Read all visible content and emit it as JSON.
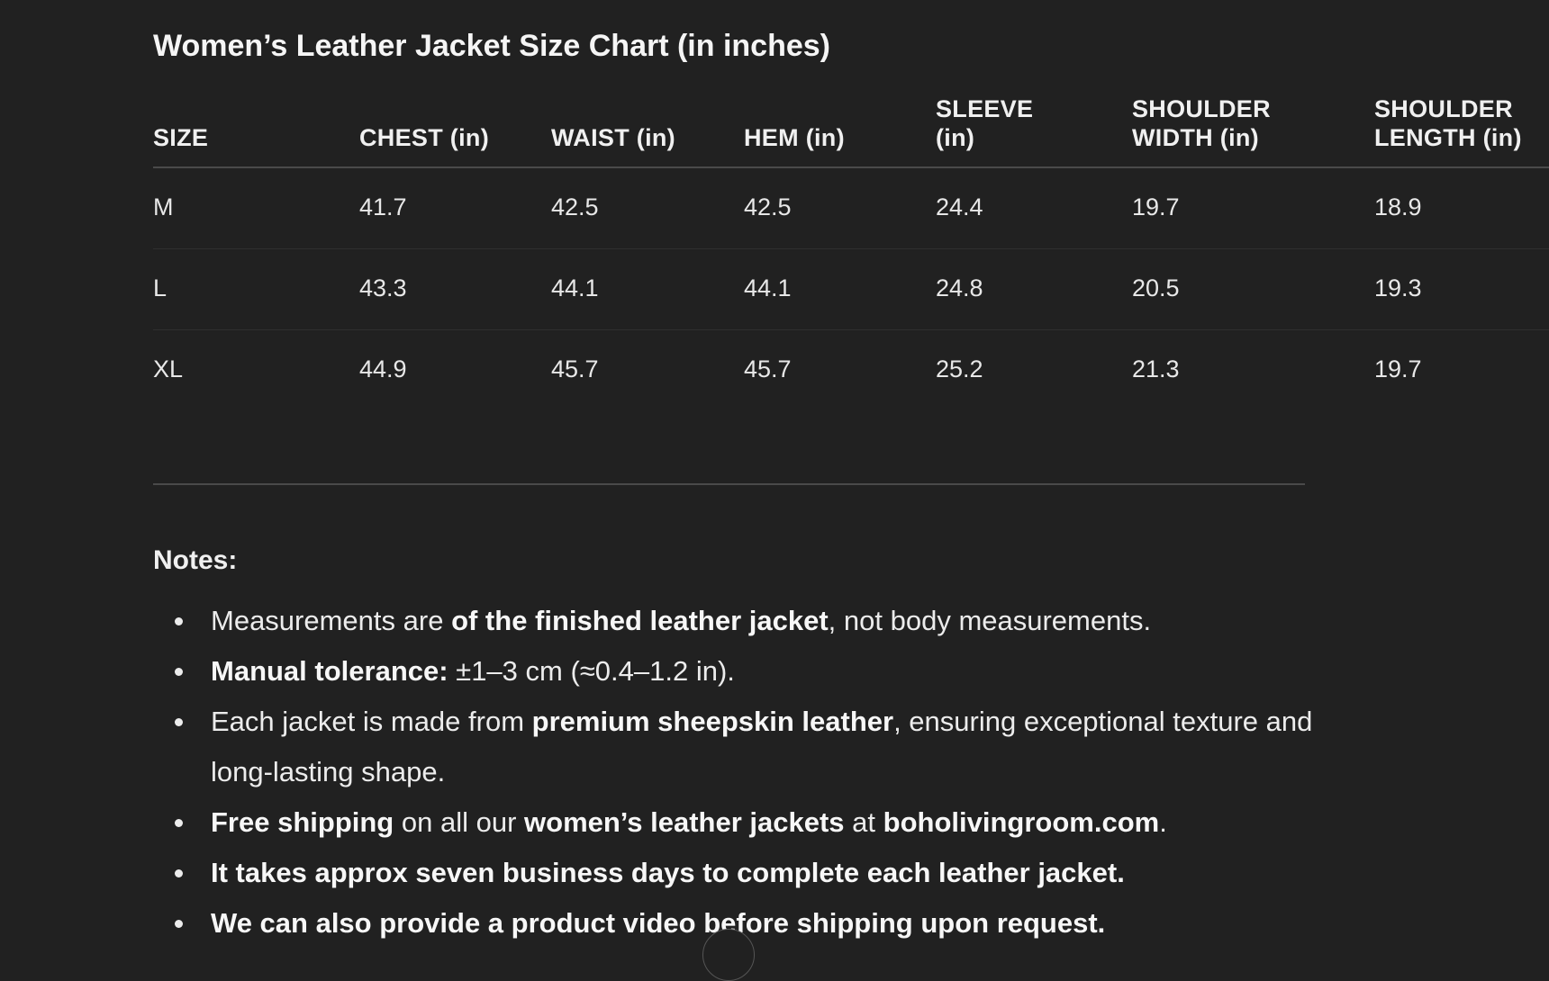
{
  "title": "Women’s Leather Jacket Size Chart (in inches)",
  "table": {
    "headers": [
      [
        "SIZE"
      ],
      [
        "CHEST (in)"
      ],
      [
        "WAIST (in)"
      ],
      [
        "HEM (in)"
      ],
      [
        "SLEEVE",
        "(in)"
      ],
      [
        "SHOULDER",
        "WIDTH (in)"
      ],
      [
        "SHOULDER",
        "LENGTH (in)"
      ]
    ],
    "rows": [
      [
        "M",
        "41.7",
        "42.5",
        "42.5",
        "24.4",
        "19.7",
        "18.9"
      ],
      [
        "L",
        "43.3",
        "44.1",
        "44.1",
        "24.8",
        "20.5",
        "19.3"
      ],
      [
        "XL",
        "44.9",
        "45.7",
        "45.7",
        "25.2",
        "21.3",
        "19.7"
      ]
    ]
  },
  "notes": {
    "heading": "Notes:",
    "items": [
      [
        {
          "t": "Measurements are "
        },
        {
          "t": "of the finished leather jacket",
          "b": true
        },
        {
          "t": ", not body measurements."
        }
      ],
      [
        {
          "t": "Manual tolerance:",
          "b": true
        },
        {
          "t": " ±1–3 cm (≈0.4–1.2 in)."
        }
      ],
      [
        {
          "t": "Each jacket is made from "
        },
        {
          "t": "premium sheepskin leather",
          "b": true
        },
        {
          "t": ", ensuring exceptional texture and long-lasting shape."
        }
      ],
      [
        {
          "t": "Free shipping",
          "b": true
        },
        {
          "t": " on all our "
        },
        {
          "t": "women’s leather jackets",
          "b": true
        },
        {
          "t": " at "
        },
        {
          "t": "boholivingroom.com",
          "b": true
        },
        {
          "t": "."
        }
      ],
      [
        {
          "t": "It takes approx seven business days to complete each leather jacket.",
          "b": true
        }
      ],
      [
        {
          "t": "We can also provide a product video before shipping upon request.",
          "b": true
        }
      ]
    ]
  },
  "scroll_button": {
    "icon": "arrow-down-icon"
  }
}
